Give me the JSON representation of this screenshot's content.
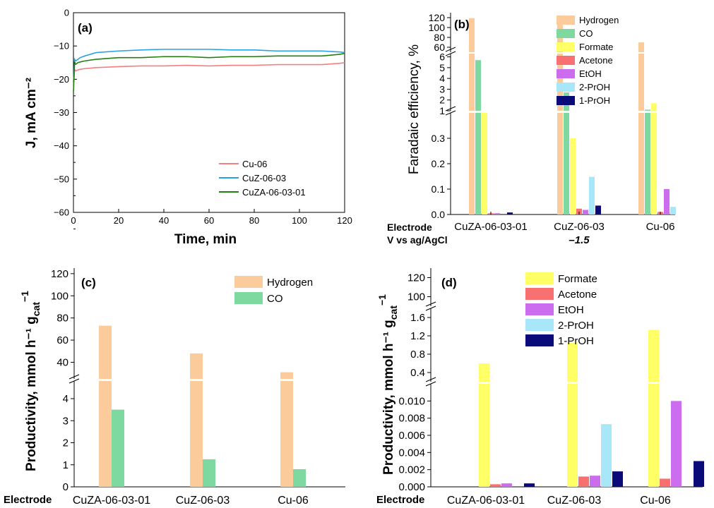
{
  "colors": {
    "hydrogen": "#FCCB9C",
    "co": "#7ED9A0",
    "formate": "#FFFF66",
    "acetone": "#F87070",
    "etoh": "#CC6CEE",
    "prop2": "#A8E6FA",
    "prop1": "#0A0A78",
    "cu06_line": "#F28080",
    "cuz_line": "#27A2E5",
    "cuza_line": "#22800E"
  },
  "chart_data": [
    {
      "panel": "(a)",
      "type": "line",
      "xlabel": "Time, min",
      "ylabel": "J, mA cm⁻²",
      "xlim": [
        0,
        120
      ],
      "ylim": [
        -60,
        0
      ],
      "xticks": [
        "0",
        "20",
        "40",
        "60",
        "80",
        "100",
        "120"
      ],
      "yticks": [
        "0",
        "−10",
        "−20",
        "−30",
        "−40",
        "−50",
        "−60"
      ],
      "legend_position": "bottom-right",
      "series": [
        {
          "name": "Cu-06",
          "color_key": "cu06_line",
          "x": [
            0,
            0.5,
            1,
            2,
            3,
            5,
            10,
            20,
            30,
            40,
            50,
            60,
            70,
            80,
            90,
            100,
            110,
            118,
            120
          ],
          "y": [
            -22,
            -17,
            -17.5,
            -17.2,
            -17,
            -16.8,
            -16.5,
            -16.2,
            -16,
            -16,
            -15.8,
            -16,
            -15.8,
            -15.8,
            -15.6,
            -15.6,
            -15.6,
            -15.2,
            -15
          ]
        },
        {
          "name": "CuZ-06-03",
          "color_key": "cuz_line",
          "x": [
            0,
            0.5,
            1,
            2,
            3,
            5,
            10,
            20,
            30,
            40,
            50,
            60,
            70,
            80,
            90,
            100,
            110,
            118,
            120
          ],
          "y": [
            -21,
            -14,
            -14.5,
            -14,
            -13.5,
            -13,
            -12,
            -11.5,
            -11.2,
            -11,
            -11,
            -11,
            -11.2,
            -11.2,
            -11.5,
            -11.5,
            -11.5,
            -11.8,
            -12
          ]
        },
        {
          "name": "CuZA-06-03-01",
          "color_key": "cuza_line",
          "x": [
            0,
            0.5,
            1,
            2,
            3,
            5,
            10,
            20,
            30,
            40,
            50,
            60,
            70,
            80,
            90,
            100,
            110,
            118,
            120
          ],
          "y": [
            -24,
            -15,
            -15.5,
            -15,
            -14.8,
            -14.5,
            -14,
            -13.5,
            -13.5,
            -13.2,
            -13.2,
            -13.5,
            -13.2,
            -13.2,
            -13,
            -13,
            -13,
            -12.5,
            -12.2
          ]
        }
      ]
    },
    {
      "panel": "(b)",
      "type": "bar",
      "ylabel": "Faradaic efficiency, %",
      "row_labels": [
        "Electrode",
        "V vs ag/AgCl"
      ],
      "potential": "–1.5",
      "categories": [
        "CuZA-06-03-01",
        "CuZ-06-03",
        "Cu-06"
      ],
      "axis_segments": [
        {
          "range": [
            0,
            0.4
          ],
          "ticks": [
            "0.0",
            "0.1",
            "0.2",
            "0.3"
          ]
        },
        {
          "range": [
            1,
            6.3
          ],
          "ticks": [
            "1",
            "2",
            "3",
            "4",
            "5",
            "6"
          ]
        },
        {
          "range": [
            50,
            130
          ],
          "ticks": [
            "60",
            "80",
            "100",
            "120"
          ]
        }
      ],
      "legend_position": "top-right",
      "series": [
        {
          "name": "Hydrogen",
          "color_key": "hydrogen",
          "values": [
            119,
            108,
            70
          ]
        },
        {
          "name": "CO",
          "color_key": "co",
          "values": [
            5.7,
            2.7,
            1.1
          ]
        },
        {
          "name": "Formate",
          "color_key": "formate",
          "values": [
            0.9,
            0.3,
            1.7
          ]
        },
        {
          "name": "Acetone",
          "color_key": "acetone",
          "values": [
            0.005,
            0.023,
            0.01
          ]
        },
        {
          "name": "EtOH",
          "color_key": "etoh",
          "values": [
            0.005,
            0.018,
            0.1
          ]
        },
        {
          "name": "2-PrOH",
          "color_key": "prop2",
          "values": [
            0,
            0.148,
            0.03
          ]
        },
        {
          "name": "1-PrOH",
          "color_key": "prop1",
          "values": [
            0.008,
            0.035,
            0
          ]
        }
      ]
    },
    {
      "panel": "(c)",
      "type": "bar",
      "ylabel": "Productivity, mmol h⁻¹ g",
      "ylabel_sub": "cat",
      "ylabel_sup": "−1",
      "row_label": "Electrode",
      "categories": [
        "CuZA-06-03-01",
        "CuZ-06-03",
        "Cu-06"
      ],
      "axis_segments": [
        {
          "range": [
            0,
            4.8
          ],
          "ticks": [
            "0",
            "1",
            "2",
            "3",
            "4"
          ]
        },
        {
          "range": [
            25,
            125
          ],
          "ticks": [
            "40",
            "60",
            "80",
            "100",
            "120"
          ]
        }
      ],
      "legend_position": "top-right",
      "series": [
        {
          "name": "Hydrogen",
          "color_key": "hydrogen",
          "values": [
            73,
            48,
            31
          ]
        },
        {
          "name": "CO",
          "color_key": "co",
          "values": [
            3.5,
            1.25,
            0.8
          ]
        }
      ]
    },
    {
      "panel": "(d)",
      "type": "bar",
      "ylabel": "Productivity, mmol h⁻¹ g",
      "ylabel_sub": "cat",
      "ylabel_sup": "−1",
      "row_label": "Electrode",
      "categories": [
        "CuZA-06-03-01",
        "CuZ-06-03",
        "Cu-06"
      ],
      "axis_segments": [
        {
          "range": [
            0,
            0.012
          ],
          "ticks": [
            "0.000",
            "0.002",
            "0.004",
            "0.006",
            "0.008",
            "0.010"
          ]
        },
        {
          "range": [
            0.2,
            1.8
          ],
          "ticks": [
            "0.4",
            "0.8",
            "1.2",
            "1.6"
          ]
        },
        {
          "range": [
            90,
            130
          ],
          "ticks": [
            "100",
            "120"
          ]
        }
      ],
      "legend_position": "top",
      "series": [
        {
          "name": "Formate",
          "color_key": "formate",
          "values": [
            0.6,
            1.05,
            1.33
          ]
        },
        {
          "name": "Acetone",
          "color_key": "acetone",
          "values": [
            0.0003,
            0.0012,
            0.00095
          ]
        },
        {
          "name": "EtOH",
          "color_key": "etoh",
          "values": [
            0.0004,
            0.0013,
            0.01
          ]
        },
        {
          "name": "2-PrOH",
          "color_key": "prop2",
          "values": [
            0,
            0.0073,
            0
          ]
        },
        {
          "name": "1-PrOH",
          "color_key": "prop1",
          "values": [
            0.0004,
            0.0018,
            0.003
          ]
        }
      ]
    }
  ]
}
